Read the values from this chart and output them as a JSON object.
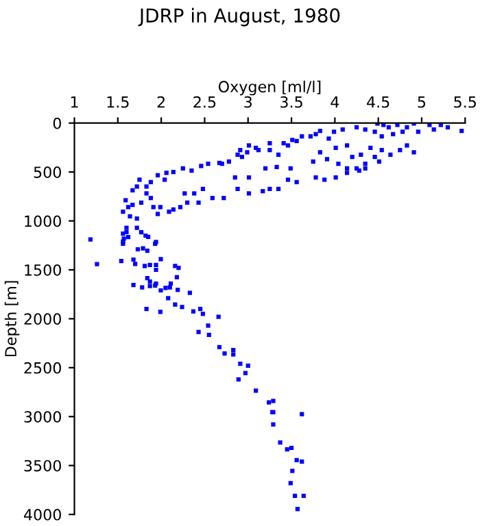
{
  "chart_data": {
    "type": "scatter",
    "title": "JDRP in August, 1980",
    "xlabel": "Oxygen [ml/l]",
    "ylabel": "Depth [m]",
    "xlim": [
      1,
      5.5
    ],
    "xticks": [
      1,
      1.5,
      2,
      2.5,
      3,
      3.5,
      4,
      4.5,
      5,
      5.5
    ],
    "ylim": [
      4000,
      0
    ],
    "yticks": [
      0,
      500,
      1000,
      1500,
      2000,
      2500,
      3000,
      3500,
      4000
    ],
    "marker": "square",
    "grid": false,
    "series": [
      {
        "color": "#0000ff",
        "x": [
          4.49,
          4.56,
          4.62,
          4.72,
          4.83,
          4.91,
          5.09,
          5.22,
          5.3,
          5.46,
          5.14,
          4.96,
          4.78,
          4.67,
          4.54,
          4.46,
          4.35,
          4.25,
          4.09,
          3.99,
          3.83,
          3.78,
          3.62,
          3.51,
          3.41,
          3.25,
          3.09,
          2.99,
          2.88,
          2.78,
          2.67,
          2.54,
          2.46,
          2.35,
          2.25,
          2.14,
          2.06,
          1.96,
          2.04,
          1.88,
          1.75,
          1.83,
          1.67,
          1.59,
          1.62,
          1.67,
          1.64,
          1.72,
          1.56,
          1.77,
          1.85,
          1.93,
          1.56,
          2.91,
          3.01,
          3.12,
          3.25,
          3.35,
          3.46,
          3.56,
          3.72,
          3.93,
          4.01,
          4.14,
          4.2,
          4.3,
          4.41,
          4.46,
          4.54,
          4.64,
          4.75,
          4.83,
          4.91,
          4.51,
          4.35,
          4.28,
          4.14,
          4.04,
          3.91,
          3.83,
          3.75,
          3.49,
          3.33,
          3.2,
          3.01,
          2.85,
          2.7,
          2.93,
          3.78,
          3.88,
          4.01,
          4.14,
          4.25,
          4.35,
          3.56,
          3.46,
          3.35,
          3.25,
          3.17,
          3.01,
          2.88,
          2.72,
          2.59,
          2.48,
          2.38,
          2.27,
          2.43,
          2.3,
          2.22,
          2.14,
          2.09,
          1.99,
          1.91,
          1.96,
          1.83,
          1.88,
          1.77,
          1.72,
          1.185,
          1.26,
          1.54,
          1.6,
          1.6,
          1.56,
          1.57,
          1.62,
          1.56,
          1.72,
          1.77,
          1.82,
          1.94,
          1.73,
          1.79,
          1.84,
          1.68,
          1.7,
          1.81,
          1.87,
          1.94,
          1.94,
          1.995,
          2.16,
          2.2,
          2.18,
          1.84,
          1.68,
          1.78,
          1.87,
          1.87,
          1.93,
          1.94,
          1.995,
          2.05,
          2.1,
          2.11,
          2.19,
          2.33,
          2.08,
          2.16,
          2.24,
          1.83,
          1.99,
          2.37,
          2.45,
          2.48,
          2.66,
          2.54,
          2.43,
          2.55,
          2.67,
          2.73,
          2.83,
          2.83,
          2.91,
          3.0,
          2.97,
          2.89,
          3.09,
          3.24,
          3.29,
          3.28,
          3.29,
          3.62,
          3.29,
          3.37,
          3.45,
          3.5,
          3.56,
          3.62,
          3.51,
          3.49,
          3.54,
          3.64,
          3.57
        ],
        "values": [
          5,
          19,
          43,
          19,
          43,
          5,
          19,
          19,
          43,
          80,
          66,
          89,
          89,
          113,
          136,
          89,
          66,
          43,
          66,
          89,
          80,
          113,
          136,
          173,
          206,
          206,
          253,
          299,
          323,
          393,
          407,
          416,
          439,
          486,
          463,
          500,
          509,
          533,
          579,
          603,
          579,
          649,
          687,
          789,
          859,
          836,
          953,
          976,
          906,
          1116,
          1163,
          1233,
          1233,
          276,
          229,
          276,
          276,
          323,
          229,
          183,
          136,
          159,
          253,
          229,
          346,
          323,
          253,
          346,
          276,
          323,
          276,
          229,
          299,
          393,
          416,
          486,
          463,
          416,
          369,
          299,
          393,
          463,
          449,
          463,
          556,
          556,
          416,
          346,
          556,
          579,
          556,
          509,
          463,
          463,
          603,
          579,
          673,
          673,
          696,
          719,
          673,
          766,
          766,
          673,
          719,
          719,
          813,
          813,
          859,
          883,
          906,
          859,
          859,
          929,
          719,
          766,
          813,
          649,
          1190,
          1442,
          1410,
          1070,
          1115,
          1130,
          1180,
          1165,
          1210,
          1070,
          1115,
          1150,
          1215,
          1290,
          1280,
          1305,
          1395,
          1440,
          1460,
          1450,
          1450,
          1500,
          1390,
          1460,
          1480,
          1575,
          1585,
          1655,
          1680,
          1620,
          1665,
          1660,
          1640,
          1710,
          1685,
          1680,
          1640,
          1705,
          1735,
          1790,
          1855,
          1880,
          1900,
          1930,
          1925,
          1900,
          1950,
          1980,
          2070,
          2135,
          2165,
          2290,
          2355,
          2320,
          2365,
          2460,
          2480,
          2555,
          2620,
          2735,
          2855,
          2840,
          2955,
          2955,
          2975,
          3080,
          3265,
          3335,
          3320,
          3445,
          3460,
          3555,
          3680,
          3810,
          3810,
          3945
        ]
      }
    ]
  }
}
